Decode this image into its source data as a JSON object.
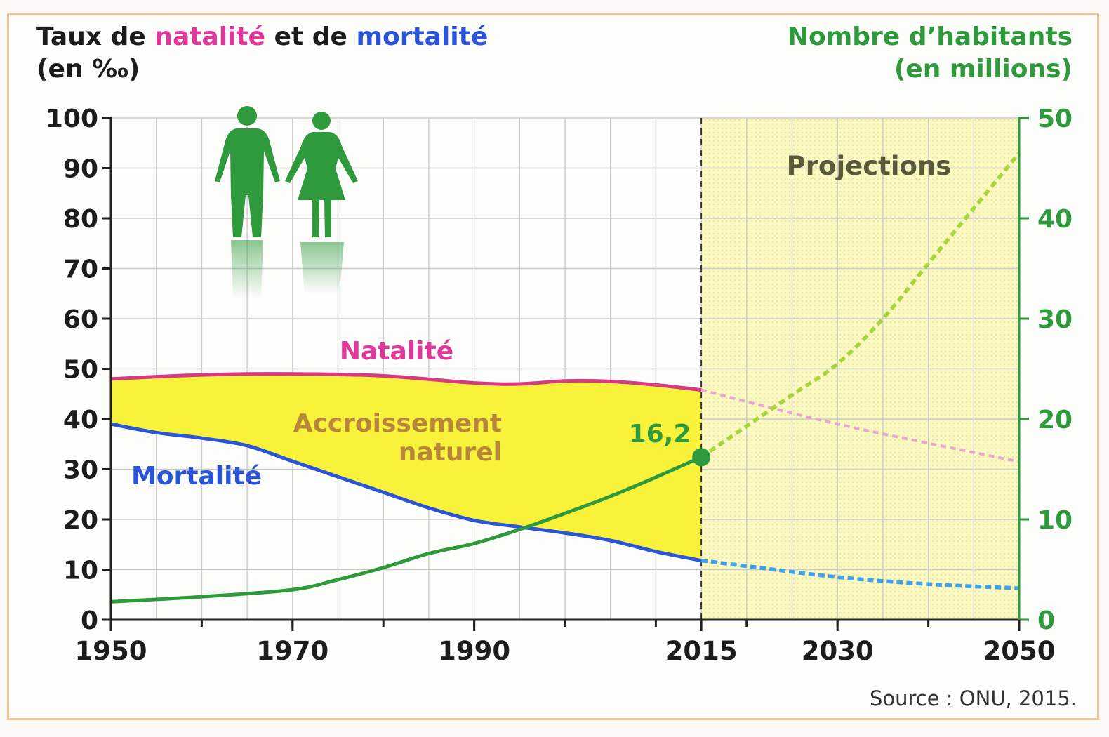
{
  "title_left": {
    "part1": "Taux de ",
    "natalite": "natalité",
    "part2": " et de ",
    "mortalite": "mortalité",
    "unit": "(en ‰)"
  },
  "title_right": {
    "line1": "Nombre d’habitants",
    "line2": "(en millions)"
  },
  "source": "Source : ONU, 2015.",
  "labels": {
    "natalite": "Natalité",
    "mortalite": "Mortalité",
    "accroissement_line1": "Accroissement",
    "accroissement_line2": "naturel",
    "projections": "Projections",
    "value_2015": "16,2"
  },
  "icons": [
    "man-icon",
    "woman-icon"
  ],
  "colors": {
    "natalite": "#d63a83",
    "natalite_projection": "#e8a8cc",
    "mortalite": "#2a55d8",
    "mortalite_projection": "#3fa2ea",
    "population": "#2e9a3c",
    "population_projection": "#a6d63c",
    "natural_increase_fill": "#f8f33a",
    "projection_zone": "#fbf8c2",
    "grid": "#cccccc"
  },
  "chart_data": {
    "type": "line",
    "x_ticks": [
      1950,
      1970,
      1990,
      2015,
      2030,
      2050
    ],
    "xlim": [
      1950,
      2050
    ],
    "y_left": {
      "ylim": [
        0,
        100
      ],
      "ticks": [
        0,
        10,
        20,
        30,
        40,
        50,
        60,
        70,
        80,
        90,
        100
      ]
    },
    "y_right": {
      "ylim": [
        0,
        50
      ],
      "ticks": [
        0,
        10,
        20,
        30,
        40,
        50
      ]
    },
    "projection_start": 2015,
    "series": [
      {
        "name": "Natalité",
        "axis": "left",
        "points": [
          [
            1950,
            48
          ],
          [
            1960,
            48.8
          ],
          [
            1970,
            49
          ],
          [
            1980,
            48.6
          ],
          [
            1990,
            47.2
          ],
          [
            1995,
            47
          ],
          [
            2000,
            47.6
          ],
          [
            2005,
            47.5
          ],
          [
            2010,
            46.8
          ],
          [
            2015,
            45.8
          ]
        ],
        "projection": [
          [
            2015,
            45.8
          ],
          [
            2030,
            39
          ],
          [
            2050,
            31.5
          ]
        ]
      },
      {
        "name": "Mortalité",
        "axis": "left",
        "points": [
          [
            1950,
            39
          ],
          [
            1955,
            37.3
          ],
          [
            1960,
            36.2
          ],
          [
            1965,
            34.7
          ],
          [
            1970,
            31.6
          ],
          [
            1975,
            28.5
          ],
          [
            1980,
            25.4
          ],
          [
            1985,
            22.3
          ],
          [
            1990,
            19.8
          ],
          [
            1995,
            18.5
          ],
          [
            2000,
            17.3
          ],
          [
            2005,
            15.8
          ],
          [
            2010,
            13.6
          ],
          [
            2015,
            11.8
          ]
        ],
        "projection": [
          [
            2015,
            11.8
          ],
          [
            2020,
            10.7
          ],
          [
            2030,
            8.5
          ],
          [
            2040,
            7.1
          ],
          [
            2050,
            6.3
          ]
        ]
      },
      {
        "name": "Nombre d’habitants",
        "axis": "right",
        "points": [
          [
            1950,
            1.8
          ],
          [
            1960,
            2.3
          ],
          [
            1970,
            3.0
          ],
          [
            1975,
            4.0
          ],
          [
            1980,
            5.2
          ],
          [
            1985,
            6.6
          ],
          [
            1990,
            7.6
          ],
          [
            1995,
            9.0
          ],
          [
            2000,
            10.6
          ],
          [
            2005,
            12.3
          ],
          [
            2010,
            14.2
          ],
          [
            2015,
            16.2
          ]
        ],
        "projection": [
          [
            2015,
            16.2
          ],
          [
            2020,
            19.3
          ],
          [
            2025,
            22.4
          ],
          [
            2030,
            25.5
          ],
          [
            2035,
            30.0
          ],
          [
            2040,
            35.5
          ],
          [
            2045,
            41.0
          ],
          [
            2050,
            46.5
          ]
        ]
      }
    ],
    "annotations": [
      {
        "x": 2015,
        "y_right": 16.2,
        "label": "16,2"
      }
    ]
  }
}
